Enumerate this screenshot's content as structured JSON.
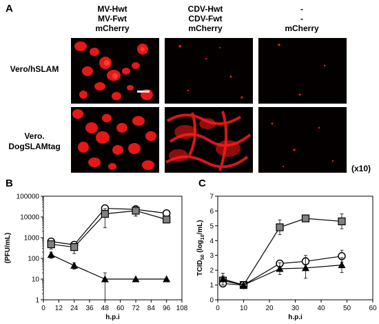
{
  "panel_a": {
    "letter": "A",
    "columns": [
      {
        "lines": [
          "MV-Hwt",
          "MV-Fwt",
          "mCherry"
        ]
      },
      {
        "lines": [
          "CDV-Hwt",
          "CDV-Fwt",
          "mCherry"
        ]
      },
      {
        "lines": [
          "-",
          "-",
          "mCherry"
        ]
      }
    ],
    "rows": [
      {
        "lines": [
          "Vero/hSLAM"
        ]
      },
      {
        "lines": [
          "Vero.",
          "DogSLAMtag"
        ]
      }
    ],
    "magnification": "(x10)",
    "signal_color": "#ff1a1a"
  },
  "panel_b": {
    "letter": "B"
  },
  "panel_c": {
    "letter": "C"
  },
  "chart_data": [
    {
      "type": "line",
      "panel": "B",
      "xlabel": "h.p.i",
      "ylabel": "(PFU/mL)",
      "y_scale": "log",
      "xlim": [
        0,
        108
      ],
      "ylim": [
        1,
        100000
      ],
      "x_ticks": [
        0,
        12,
        24,
        36,
        48,
        60,
        72,
        84,
        96,
        108
      ],
      "y_ticks": [
        1,
        10,
        100,
        1000,
        10000,
        100000
      ],
      "y_tick_labels": [
        "1",
        "10",
        "100",
        "1000",
        "10000",
        "100000"
      ],
      "grid": false,
      "series": [
        {
          "marker": "open-circle",
          "x": [
            6,
            24,
            48,
            72,
            96
          ],
          "y": [
            650,
            450,
            26000,
            23000,
            15000
          ],
          "err": [
            200,
            100,
            3000,
            12000,
            5000
          ]
        },
        {
          "marker": "gray-square",
          "x": [
            6,
            24,
            48,
            72,
            96
          ],
          "y": [
            480,
            350,
            14000,
            20000,
            7500
          ],
          "err": [
            200,
            180,
            11000,
            9000,
            2000
          ]
        },
        {
          "marker": "filled-triangle",
          "x": [
            6,
            24,
            48,
            72,
            96
          ],
          "y": [
            150,
            45,
            10,
            10,
            10
          ],
          "err": [
            50,
            15,
            10,
            0,
            0
          ]
        }
      ]
    },
    {
      "type": "line",
      "panel": "C",
      "xlabel": "h.p.i",
      "ylabel_main": "TCID",
      "ylabel_sub": "50",
      "ylabel_rest": " (log",
      "ylabel_sub2": "10",
      "ylabel_end": "/mL)",
      "xlim": [
        0,
        60
      ],
      "ylim": [
        0,
        7
      ],
      "x_ticks": [
        0,
        10,
        20,
        30,
        40,
        50,
        60
      ],
      "y_ticks": [
        0,
        1,
        2,
        3,
        4,
        5,
        6,
        7
      ],
      "grid": false,
      "series": [
        {
          "marker": "gray-square",
          "x": [
            2,
            10,
            24,
            34,
            48
          ],
          "y": [
            1.3,
            1.0,
            4.9,
            5.5,
            5.3
          ],
          "err": [
            0.3,
            0.1,
            0.5,
            0.1,
            0.5
          ]
        },
        {
          "marker": "open-circle",
          "x": [
            2,
            10,
            24,
            34,
            48
          ],
          "y": [
            1.1,
            1.0,
            2.45,
            2.6,
            2.95
          ],
          "err": [
            0.2,
            0.1,
            0.1,
            0.4,
            0.4
          ]
        },
        {
          "marker": "filled-triangle",
          "x": [
            2,
            10,
            24,
            34,
            48
          ],
          "y": [
            1.4,
            1.0,
            2.1,
            2.15,
            2.35
          ],
          "err": [
            0.4,
            0.1,
            0.4,
            0.7,
            0.5
          ]
        }
      ]
    }
  ]
}
